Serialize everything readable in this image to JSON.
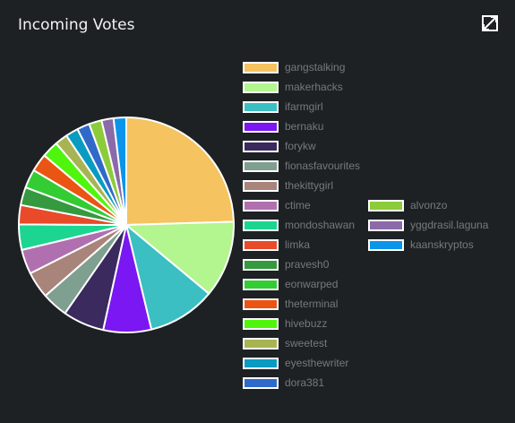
{
  "header": {
    "title": "Incoming Votes",
    "expand_icon": "expand-icon"
  },
  "chart_data": {
    "type": "pie",
    "title": "Incoming Votes",
    "legend": "right",
    "labels": [
      "gangstalking",
      "makerhacks",
      "ifarmgirl",
      "bernaku",
      "forykw",
      "fionasfavourites",
      "thekittygirl",
      "ctime",
      "mondoshawan",
      "limka",
      "pravesh0",
      "eonwarped",
      "theterminal",
      "hivebuzz",
      "sweetest",
      "eyesthewriter",
      "dora381",
      "alvonzo",
      "yggdrasil.laguna",
      "kaanskryptos"
    ],
    "values": [
      24.5,
      11.5,
      10.2,
      7.2,
      6.2,
      3.9,
      4.0,
      3.7,
      3.8,
      2.9,
      2.7,
      2.8,
      2.7,
      2.5,
      1.9,
      1.9,
      1.9,
      1.9,
      1.8,
      1.9
    ],
    "colors": [
      "#f5c35f",
      "#b3f58e",
      "#3bbfc2",
      "#7a17f2",
      "#3a2a5e",
      "#7f9f90",
      "#a8847a",
      "#b070b0",
      "#1cd590",
      "#e84a2a",
      "#35993f",
      "#33cc33",
      "#ea5514",
      "#50f50e",
      "#a8b453",
      "#0a9bc1",
      "#2f6ac9",
      "#8ccc3a",
      "#8a6aa8",
      "#0b95ea"
    ]
  }
}
